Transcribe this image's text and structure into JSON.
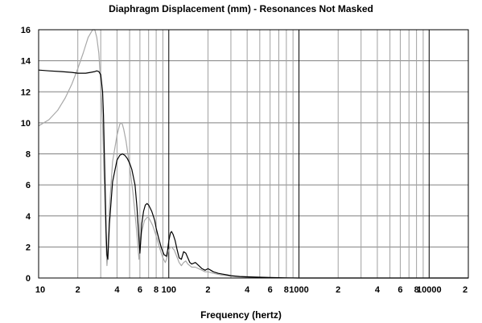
{
  "chart_data": {
    "type": "line",
    "title": "Diaphragm Displacement (mm) - Resonances Not Masked",
    "xlabel": "Frequency (hertz)",
    "ylabel": "",
    "x_scale": "log",
    "xlim": [
      10,
      20000
    ],
    "ylim": [
      0,
      16
    ],
    "grid": true,
    "y_ticks": [
      0,
      2,
      4,
      6,
      8,
      10,
      12,
      14,
      16
    ],
    "x_tick_labels": [
      {
        "value": 10,
        "label": "10"
      },
      {
        "value": 20,
        "label": "2"
      },
      {
        "value": 40,
        "label": "4"
      },
      {
        "value": 60,
        "label": "6"
      },
      {
        "value": 80,
        "label": "8"
      },
      {
        "value": 100,
        "label": "100"
      },
      {
        "value": 200,
        "label": "2"
      },
      {
        "value": 400,
        "label": "4"
      },
      {
        "value": 600,
        "label": "6"
      },
      {
        "value": 800,
        "label": "8"
      },
      {
        "value": 1000,
        "label": "1000"
      },
      {
        "value": 2000,
        "label": "2"
      },
      {
        "value": 4000,
        "label": "4"
      },
      {
        "value": 6000,
        "label": "6"
      },
      {
        "value": 8000,
        "label": "8"
      },
      {
        "value": 10000,
        "label": "10000"
      },
      {
        "value": 20000,
        "label": "2"
      }
    ],
    "series": [
      {
        "color": "#000000",
        "x": [
          10,
          12,
          15,
          18,
          20,
          23,
          25,
          27,
          28,
          29,
          30,
          31,
          31.5,
          32,
          32.5,
          33,
          33.5,
          34,
          35,
          37,
          40,
          42,
          44,
          46,
          48,
          50,
          52,
          55,
          57,
          59,
          60,
          61,
          62,
          64,
          66,
          68,
          70,
          72,
          74,
          76,
          78,
          80,
          84,
          88,
          92,
          96,
          98,
          100,
          103,
          105,
          108,
          112,
          116,
          120,
          125,
          130,
          135,
          140,
          145,
          150,
          160,
          170,
          180,
          190,
          200,
          210,
          220,
          240,
          260,
          280,
          300,
          350,
          400,
          500,
          600,
          700,
          800,
          1000,
          1500,
          2000,
          5000,
          10000,
          20000
        ],
        "y": [
          13.4,
          13.35,
          13.3,
          13.25,
          13.2,
          13.2,
          13.25,
          13.3,
          13.35,
          13.3,
          13.1,
          12.0,
          10.5,
          8.0,
          5.5,
          3.0,
          1.5,
          1.2,
          3.5,
          6.2,
          7.6,
          7.9,
          8.0,
          7.9,
          7.7,
          7.4,
          7.0,
          6.0,
          4.5,
          2.5,
          1.6,
          2.5,
          3.5,
          4.3,
          4.7,
          4.8,
          4.7,
          4.5,
          4.3,
          4.0,
          3.7,
          3.2,
          2.5,
          1.9,
          1.5,
          1.4,
          1.8,
          2.4,
          2.9,
          3.0,
          2.8,
          2.4,
          1.8,
          1.3,
          1.2,
          1.7,
          1.6,
          1.3,
          1.0,
          0.9,
          1.0,
          0.8,
          0.6,
          0.5,
          0.6,
          0.5,
          0.4,
          0.3,
          0.25,
          0.2,
          0.15,
          0.1,
          0.08,
          0.05,
          0.03,
          0.02,
          0.01,
          0.0,
          0.0,
          0.0,
          0.0,
          0.0,
          0.0
        ]
      },
      {
        "color": "#a8a8a8",
        "x": [
          10,
          12,
          14,
          16,
          18,
          20,
          22,
          24,
          26,
          27,
          28,
          29,
          30,
          31,
          32,
          33,
          33.5,
          34,
          35,
          37,
          40,
          42,
          43,
          44,
          45,
          47,
          50,
          53,
          56,
          58,
          59,
          60,
          62,
          65,
          68,
          70,
          72,
          75,
          78,
          82,
          86,
          90,
          94,
          96,
          98,
          100,
          103,
          105,
          110,
          115,
          120,
          125,
          130,
          135,
          140,
          150,
          160,
          170,
          180,
          190,
          200,
          220,
          250,
          300,
          400,
          600,
          1000,
          2000,
          5000,
          10000,
          20000
        ],
        "y": [
          9.8,
          10.2,
          10.8,
          11.6,
          12.5,
          13.5,
          14.5,
          15.5,
          16.0,
          16.0,
          15.5,
          14.5,
          12.5,
          10.0,
          6.0,
          2.0,
          0.8,
          1.5,
          4.5,
          7.5,
          9.2,
          9.9,
          10.0,
          9.9,
          9.6,
          8.8,
          7.2,
          5.5,
          3.5,
          2.0,
          1.2,
          1.8,
          3.0,
          3.7,
          3.9,
          3.9,
          3.7,
          3.4,
          3.0,
          2.4,
          1.8,
          1.3,
          1.0,
          1.2,
          1.5,
          1.8,
          2.0,
          2.0,
          1.8,
          1.4,
          1.0,
          0.8,
          1.0,
          1.1,
          0.9,
          0.7,
          0.7,
          0.6,
          0.5,
          0.4,
          0.4,
          0.3,
          0.2,
          0.12,
          0.05,
          0.02,
          0.0,
          0.0,
          0.0,
          0.0,
          0.0
        ]
      }
    ]
  }
}
